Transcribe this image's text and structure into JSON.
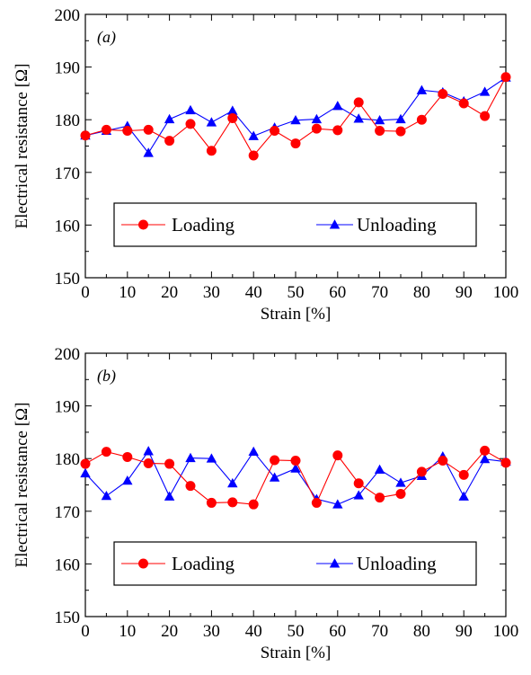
{
  "chart_data": [
    {
      "type": "line",
      "panel_label": "(a)",
      "xlabel": "Strain [%]",
      "ylabel": "Electrical resistance [Ω]",
      "xlim": [
        0,
        100
      ],
      "ylim": [
        150,
        200
      ],
      "x_ticks": [
        0,
        10,
        20,
        30,
        40,
        50,
        60,
        70,
        80,
        90,
        100
      ],
      "y_ticks": [
        150,
        160,
        170,
        180,
        190,
        200
      ],
      "x": [
        0,
        5,
        10,
        15,
        20,
        25,
        30,
        35,
        40,
        45,
        50,
        55,
        60,
        65,
        70,
        75,
        80,
        85,
        90,
        95,
        100
      ],
      "grid": false,
      "legend_position": "lower-center",
      "series": [
        {
          "name": "Loading",
          "color": "#ff0000",
          "marker": "circle",
          "values": [
            177.0,
            178.1,
            177.9,
            178.1,
            176.0,
            179.2,
            174.1,
            180.3,
            173.2,
            177.9,
            175.5,
            178.3,
            178.0,
            183.3,
            177.9,
            177.8,
            180.0,
            184.9,
            183.1,
            180.7,
            188.1
          ]
        },
        {
          "name": "Unloading",
          "color": "#0000ff",
          "marker": "triangle",
          "values": [
            177.0,
            177.9,
            178.8,
            173.7,
            180.1,
            181.8,
            179.5,
            181.7,
            176.9,
            178.5,
            179.9,
            180.1,
            182.6,
            180.2,
            179.9,
            180.1,
            185.6,
            185.2,
            183.5,
            185.3,
            188.0
          ]
        }
      ]
    },
    {
      "type": "line",
      "panel_label": "(b)",
      "xlabel": "Strain [%]",
      "ylabel": "Electrical resistance [Ω]",
      "xlim": [
        0,
        100
      ],
      "ylim": [
        150,
        200
      ],
      "x_ticks": [
        0,
        10,
        20,
        30,
        40,
        50,
        60,
        70,
        80,
        90,
        100
      ],
      "y_ticks": [
        150,
        160,
        170,
        180,
        190,
        200
      ],
      "x": [
        0,
        5,
        10,
        15,
        20,
        25,
        30,
        35,
        40,
        45,
        50,
        55,
        60,
        65,
        70,
        75,
        80,
        85,
        90,
        95,
        100
      ],
      "grid": false,
      "legend_position": "lower-center",
      "series": [
        {
          "name": "Loading",
          "color": "#ff0000",
          "marker": "circle",
          "values": [
            179.0,
            181.3,
            180.3,
            179.1,
            179.0,
            174.8,
            171.6,
            171.7,
            171.3,
            179.7,
            179.6,
            171.6,
            180.6,
            175.3,
            172.6,
            173.3,
            177.5,
            179.6,
            176.9,
            181.5,
            179.2
          ]
        },
        {
          "name": "Unloading",
          "color": "#0000ff",
          "marker": "triangle",
          "values": [
            177.2,
            172.9,
            175.8,
            181.4,
            172.8,
            180.1,
            180.0,
            175.3,
            181.3,
            176.4,
            178.1,
            172.3,
            171.3,
            173.0,
            177.9,
            175.4,
            176.7,
            180.4,
            172.8,
            179.9,
            179.4
          ]
        }
      ]
    }
  ]
}
